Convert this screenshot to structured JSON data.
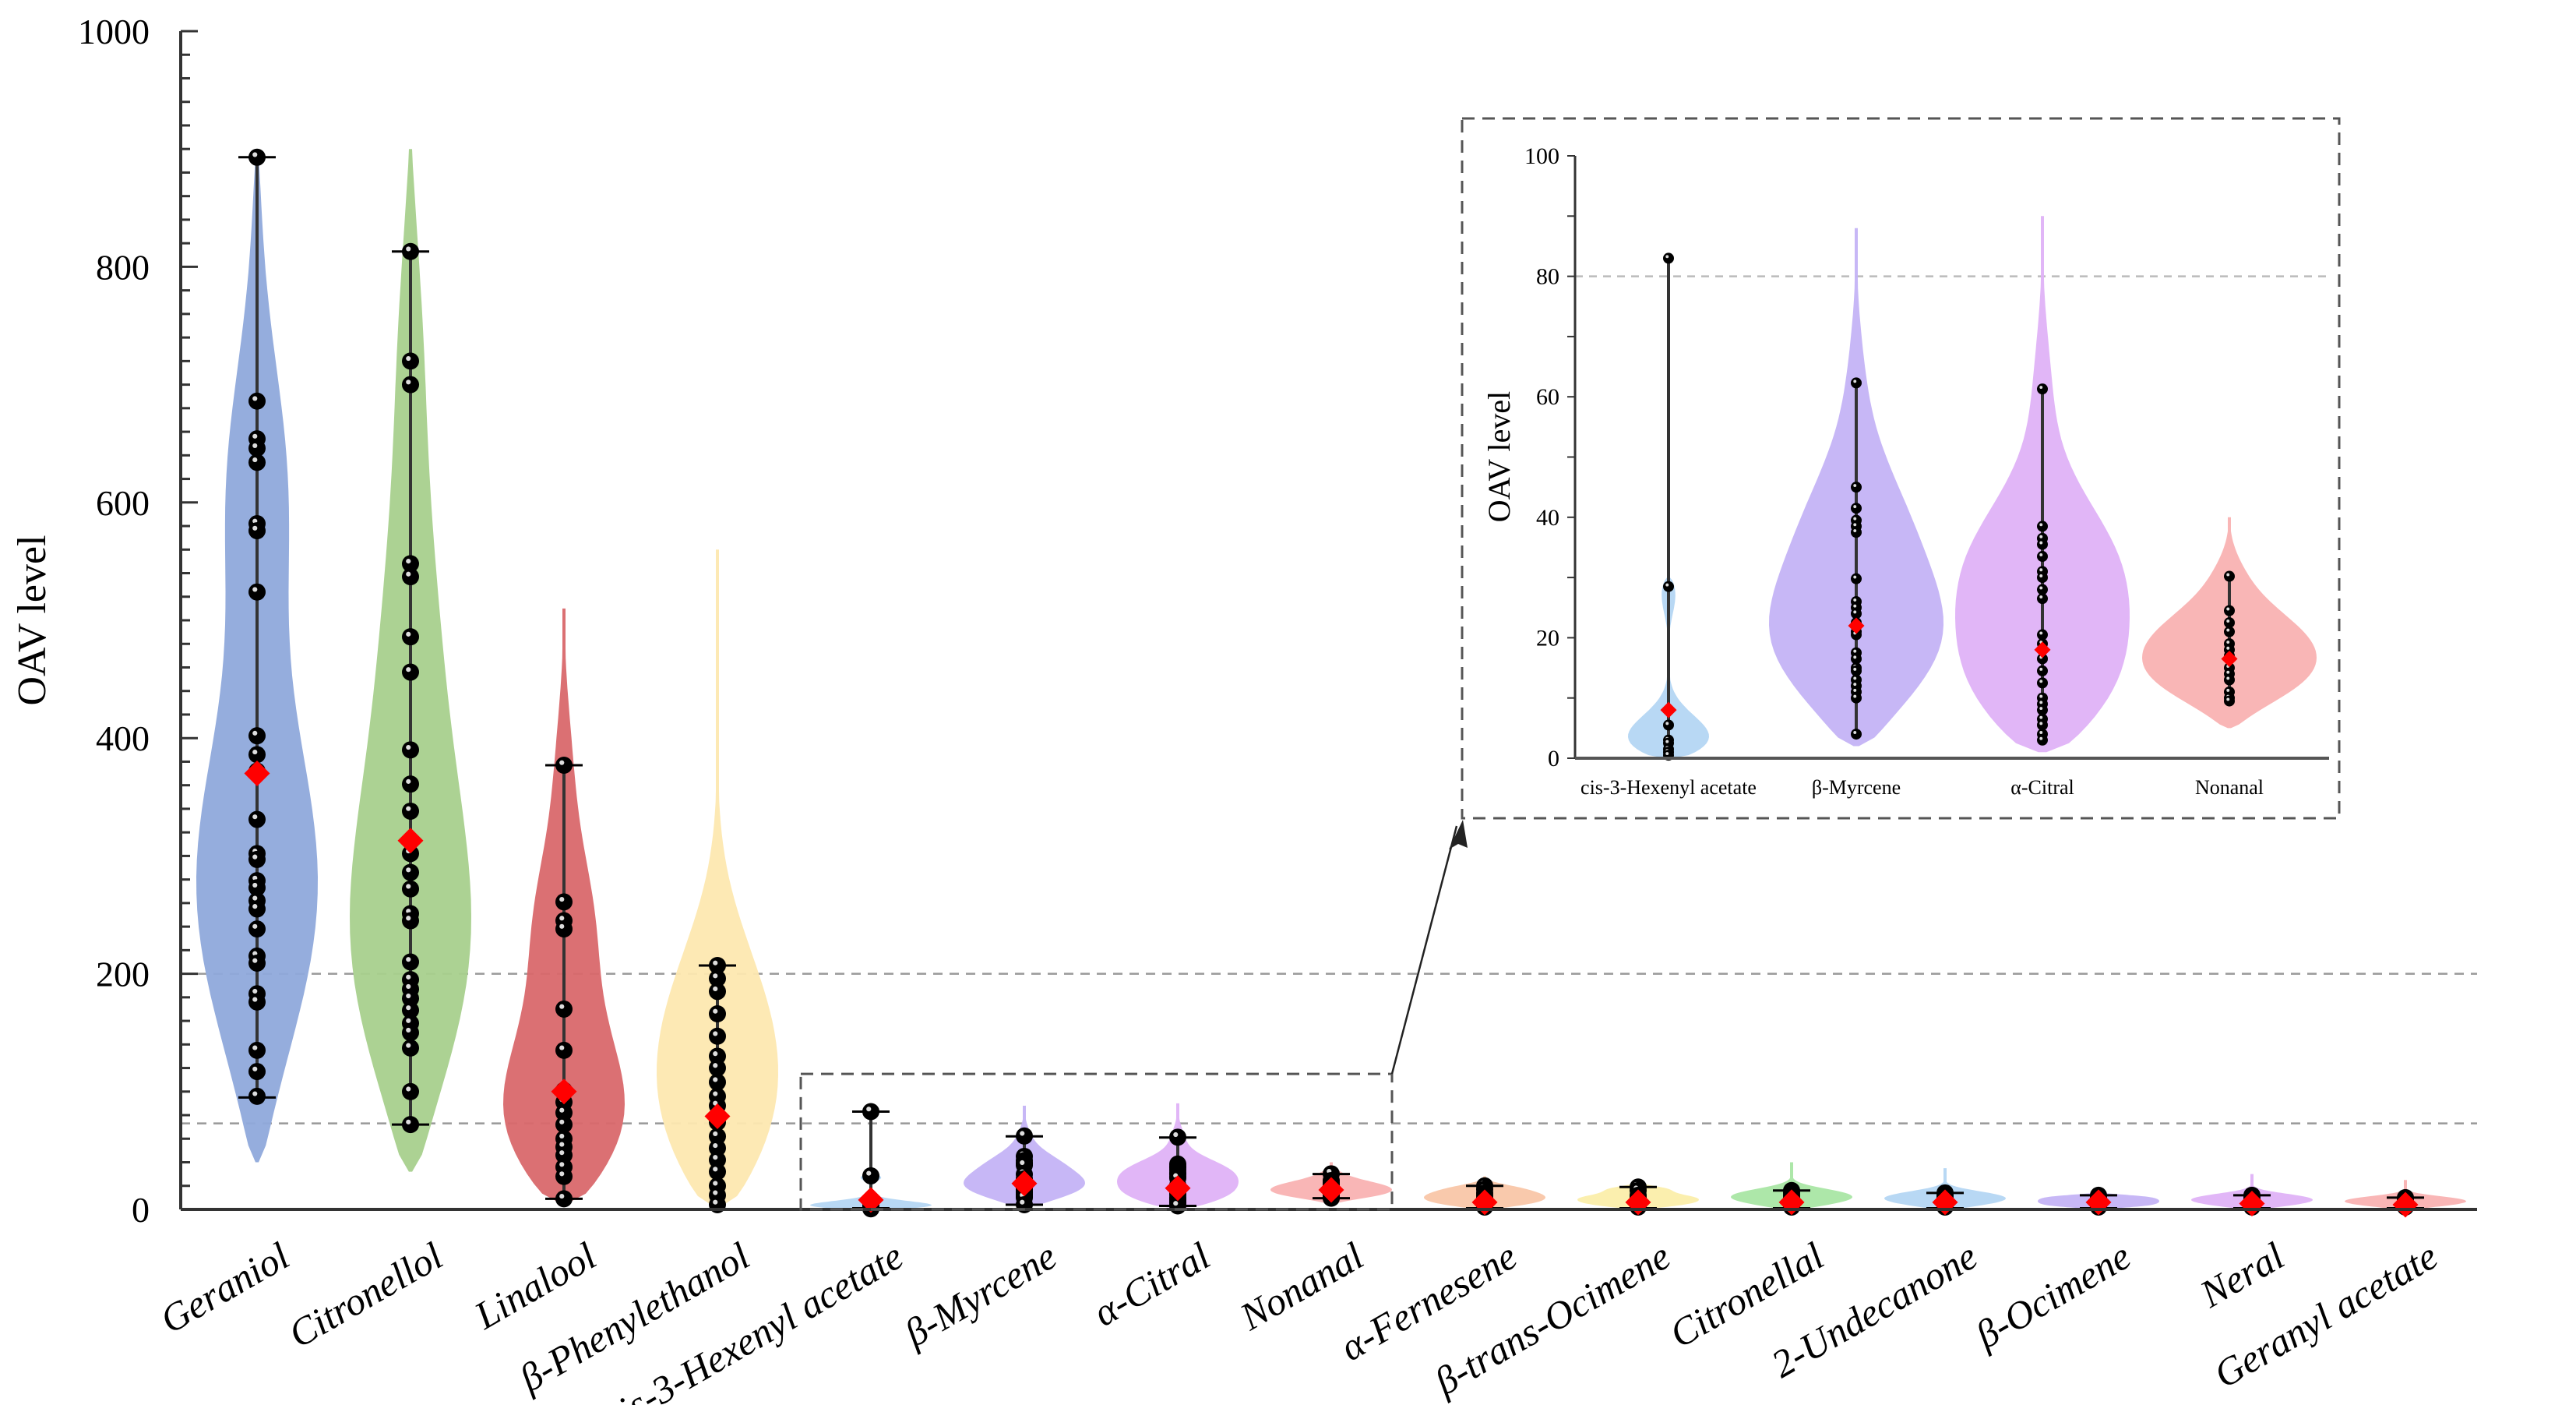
{
  "chart_data": {
    "type": "violin",
    "title": "",
    "xlabel": "",
    "ylabel": "OAV level",
    "ylim": [
      0,
      1000
    ],
    "yticks": [
      0,
      200,
      400,
      600,
      800,
      1000
    ],
    "y_minor_step": 20,
    "reference_lines": [
      200,
      73
    ],
    "categories": [
      {
        "label": "Geraniol",
        "prefix": "",
        "name": "Geraniol",
        "color": "#8fa9db",
        "max": 893,
        "min": 95,
        "mean": 370,
        "kde_top": 895,
        "kde_bottom": 40,
        "points": [
          893,
          686,
          654,
          646,
          634,
          582,
          576,
          524,
          402,
          386,
          372,
          331,
          302,
          297,
          279,
          273,
          262,
          255,
          238,
          215,
          209,
          183,
          176,
          135,
          117,
          96
        ]
      },
      {
        "label": "Citronellol",
        "prefix": "",
        "name": "Citronellol",
        "color": "#a8d08d",
        "max": 813,
        "min": 72,
        "mean": 313,
        "kde_top": 900,
        "kde_bottom": 32,
        "points": [
          813,
          720,
          700,
          548,
          537,
          486,
          456,
          390,
          361,
          338,
          302,
          286,
          272,
          251,
          245,
          210,
          195,
          187,
          179,
          169,
          158,
          150,
          137,
          100,
          72
        ]
      },
      {
        "label": "Linalool",
        "prefix": "",
        "name": "Linalool",
        "color": "#d9686b",
        "max": 377,
        "min": 9,
        "mean": 100,
        "kde_top": 510,
        "kde_bottom": 5,
        "points": [
          377,
          261,
          245,
          238,
          170,
          135,
          101,
          91,
          82,
          72,
          60,
          53,
          46,
          36,
          28,
          9
        ]
      },
      {
        "label": "β-Phenylethanol",
        "prefix": "β-",
        "name": "Phenylethanol",
        "color": "#fde8b0",
        "max": 207,
        "min": 0,
        "mean": 79,
        "kde_top": 560,
        "kde_bottom": 2,
        "points": [
          207,
          196,
          185,
          166,
          147,
          130,
          120,
          108,
          96,
          88,
          74,
          62,
          52,
          42,
          32,
          20,
          12,
          4
        ]
      },
      {
        "label": "cis-3-Hexenyl acetate",
        "prefix": "cis-",
        "name": "3-Hexenyl acetate",
        "color": "#b4d6f3",
        "max": 83,
        "min": 1,
        "mean": 8,
        "kde_top": 30,
        "kde_bottom": 0,
        "points": [
          83,
          28.5,
          5.5,
          3,
          2.5,
          1.5,
          1,
          0.5
        ]
      },
      {
        "label": "β-Myrcene",
        "prefix": "β-",
        "name": "Myrcene",
        "color": "#c4b3f5",
        "max": 62,
        "min": 4,
        "mean": 22,
        "kde_top": 88,
        "kde_bottom": 2,
        "points": [
          62.3,
          45,
          41.5,
          39.5,
          38.5,
          37.5,
          29.8,
          26,
          25,
          24,
          22.5,
          21,
          20.5,
          17.5,
          16.5,
          15,
          14.5,
          13,
          12,
          11,
          10,
          4
        ]
      },
      {
        "label": "α-Citral",
        "prefix": "α-",
        "name": "Citral",
        "color": "#dfb2f7",
        "max": 61,
        "min": 3,
        "mean": 18,
        "kde_top": 90,
        "kde_bottom": 1,
        "points": [
          61.3,
          38.5,
          36.5,
          35.5,
          33.5,
          31,
          30,
          28,
          26.5,
          20.5,
          19,
          16.5,
          14.5,
          12.5,
          10,
          9,
          8,
          6.5,
          5.5,
          4,
          3
        ]
      },
      {
        "label": "Nonanal",
        "prefix": "",
        "name": "Nonanal",
        "color": "#f9b2b2",
        "max": 30,
        "min": 9.5,
        "mean": 16.5,
        "kde_top": 40,
        "kde_bottom": 5,
        "points": [
          30.2,
          24.5,
          22.5,
          21,
          19,
          18,
          17,
          15,
          14,
          13,
          11,
          10,
          9.5
        ]
      },
      {
        "label": "α-Fernesene",
        "prefix": "α-",
        "name": "Fernesene",
        "color": "#f9c6a8",
        "max": 20,
        "min": 1,
        "mean": 6,
        "kde_top": 28,
        "kde_bottom": 0,
        "points": [
          20,
          17,
          14,
          12,
          10,
          8,
          6,
          4,
          2
        ]
      },
      {
        "label": "β-trans-Ocimene",
        "prefix": "β-",
        "name": "trans-Ocimene",
        "color": "#fbeeaa",
        "max": 19,
        "min": 1,
        "mean": 6,
        "kde_top": 22,
        "kde_bottom": 0,
        "points": [
          19,
          16,
          12,
          10,
          8,
          6,
          4,
          2
        ]
      },
      {
        "label": "Citronellal",
        "prefix": "",
        "name": "Citronellal",
        "color": "#a9e6a4",
        "max": 16,
        "min": 1,
        "mean": 6,
        "kde_top": 40,
        "kde_bottom": 0,
        "points": [
          16,
          14,
          12,
          10,
          8,
          6,
          4,
          2
        ]
      },
      {
        "label": "2-Undecanone",
        "prefix": "",
        "name": "2-Undecanone",
        "color": "#b4d6f3",
        "max": 14,
        "min": 1,
        "mean": 6,
        "kde_top": 35,
        "kde_bottom": 0,
        "points": [
          14,
          12,
          10,
          8,
          6,
          4,
          2
        ]
      },
      {
        "label": "β-Ocimene",
        "prefix": "β-",
        "name": "Ocimene",
        "color": "#c4b3f5",
        "max": 12,
        "min": 1,
        "mean": 6,
        "kde_top": 14,
        "kde_bottom": 0,
        "points": [
          12,
          10,
          8,
          6,
          4,
          2
        ]
      },
      {
        "label": "Neral",
        "prefix": "",
        "name": "Neral",
        "color": "#dfb2f7",
        "max": 12,
        "min": 1,
        "mean": 5,
        "kde_top": 30,
        "kde_bottom": 0,
        "points": [
          12,
          10,
          8,
          6,
          4,
          2
        ]
      },
      {
        "label": "Geranyl acetate",
        "prefix": "",
        "name": "Geranyl acetate",
        "color": "#f9b2b2",
        "max": 10,
        "min": 1,
        "mean": 4,
        "kde_top": 25,
        "kde_bottom": 0,
        "points": [
          10,
          8,
          6,
          4,
          2
        ]
      }
    ],
    "mean_marker_color": "#ff0000",
    "point_color": "#000000",
    "zoom_region": {
      "categories_from": 4,
      "categories_to": 7,
      "ymax": 115
    },
    "inset": {
      "ylabel": "OAV level",
      "ylim": [
        0,
        100
      ],
      "yticks": [
        0,
        20,
        40,
        60,
        80,
        100
      ],
      "reference_line": 80,
      "categories": [
        "cis-3-Hexenyl acetate",
        "β-Myrcene",
        "α-Citral",
        "Nonanal"
      ],
      "category_index": [
        4,
        5,
        6,
        7
      ]
    }
  }
}
